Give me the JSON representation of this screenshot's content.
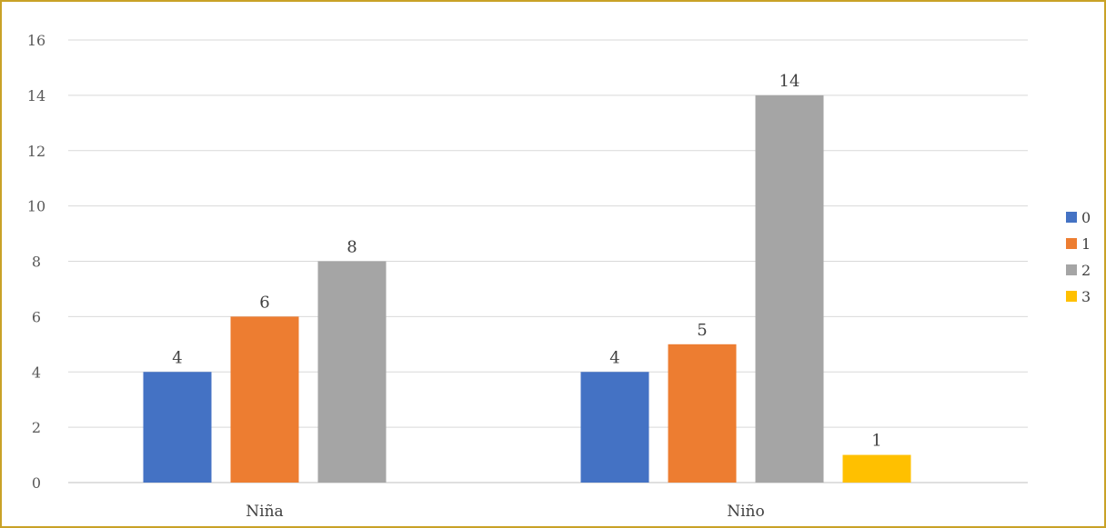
{
  "chart_data": {
    "type": "bar",
    "title": "",
    "xlabel": "",
    "ylabel": "",
    "categories": [
      "Niña",
      "Niño"
    ],
    "ylim": [
      0,
      16
    ],
    "yticks": [
      0,
      2,
      4,
      6,
      8,
      10,
      12,
      14,
      16
    ],
    "grid": true,
    "legend_position": "right",
    "series": [
      {
        "name": "0",
        "color": "#4472C4",
        "values": [
          4,
          4
        ]
      },
      {
        "name": "1",
        "color": "#ED7D31",
        "values": [
          6,
          5
        ]
      },
      {
        "name": "2",
        "color": "#A5A5A5",
        "values": [
          8,
          14
        ]
      },
      {
        "name": "3",
        "color": "#FFC000",
        "values": [
          null,
          1
        ]
      }
    ]
  },
  "colors": {
    "frame_border": "#c9a227",
    "gridline": "#d9d9d9"
  }
}
